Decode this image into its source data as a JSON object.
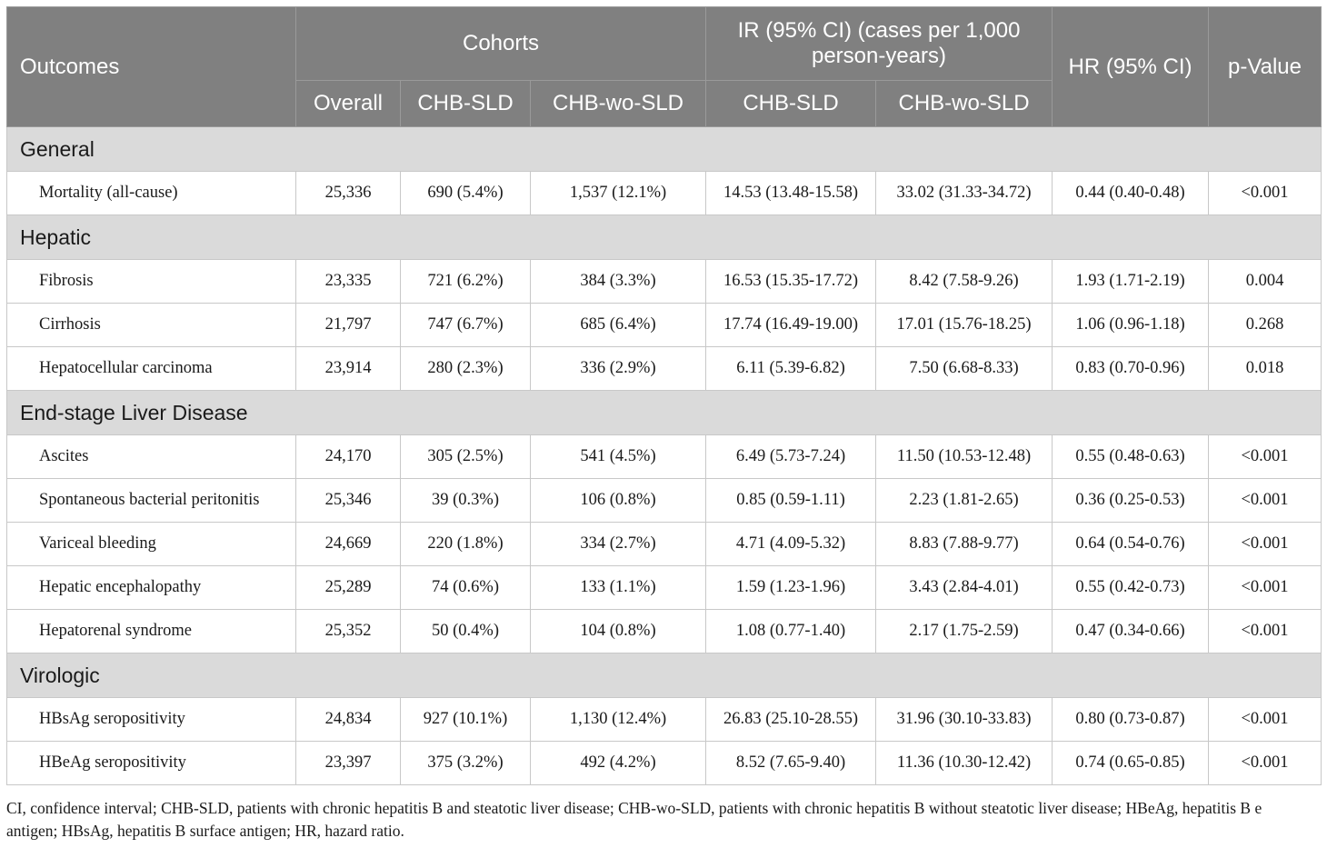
{
  "header": {
    "outcomes": "Outcomes",
    "cohorts": "Cohorts",
    "ir": "IR (95% CI) (cases per 1,000 person-years)",
    "ir_line1": "IR (95% CI) (cases per 1,000",
    "ir_line2": "person-years)",
    "hr": "HR (95% CI)",
    "pvalue": "p-Value",
    "sub": [
      "Overall",
      "CHB-SLD",
      "CHB-wo-SLD",
      "CHB-SLD",
      "CHB-wo-SLD"
    ]
  },
  "sections": [
    {
      "title": "General",
      "rows": [
        [
          "Mortality (all-cause)",
          "25,336",
          "690 (5.4%)",
          "1,537 (12.1%)",
          "14.53 (13.48-15.58)",
          "33.02 (31.33-34.72)",
          "0.44 (0.40-0.48)",
          "<0.001"
        ]
      ]
    },
    {
      "title": "Hepatic",
      "rows": [
        [
          "Fibrosis",
          "23,335",
          "721 (6.2%)",
          "384 (3.3%)",
          "16.53 (15.35-17.72)",
          "8.42 (7.58-9.26)",
          "1.93 (1.71-2.19)",
          "0.004"
        ],
        [
          "Cirrhosis",
          "21,797",
          "747 (6.7%)",
          "685 (6.4%)",
          "17.74 (16.49-19.00)",
          "17.01 (15.76-18.25)",
          "1.06 (0.96-1.18)",
          "0.268"
        ],
        [
          "Hepatocellular carcinoma",
          "23,914",
          "280 (2.3%)",
          "336 (2.9%)",
          "6.11 (5.39-6.82)",
          "7.50 (6.68-8.33)",
          "0.83 (0.70-0.96)",
          "0.018"
        ]
      ]
    },
    {
      "title": "End-stage Liver Disease",
      "rows": [
        [
          "Ascites",
          "24,170",
          "305 (2.5%)",
          "541 (4.5%)",
          "6.49 (5.73-7.24)",
          "11.50 (10.53-12.48)",
          "0.55 (0.48-0.63)",
          "<0.001"
        ],
        [
          "Spontaneous bacterial peritonitis",
          "25,346",
          "39 (0.3%)",
          "106 (0.8%)",
          "0.85 (0.59-1.11)",
          "2.23 (1.81-2.65)",
          "0.36 (0.25-0.53)",
          "<0.001"
        ],
        [
          "Variceal bleeding",
          "24,669",
          "220 (1.8%)",
          "334 (2.7%)",
          "4.71 (4.09-5.32)",
          "8.83 (7.88-9.77)",
          "0.64 (0.54-0.76)",
          "<0.001"
        ],
        [
          "Hepatic encephalopathy",
          "25,289",
          "74 (0.6%)",
          "133 (1.1%)",
          "1.59 (1.23-1.96)",
          "3.43 (2.84-4.01)",
          "0.55 (0.42-0.73)",
          "<0.001"
        ],
        [
          "Hepatorenal syndrome",
          "25,352",
          "50 (0.4%)",
          "104 (0.8%)",
          "1.08 (0.77-1.40)",
          "2.17 (1.75-2.59)",
          "0.47 (0.34-0.66)",
          "<0.001"
        ]
      ]
    },
    {
      "title": "Virologic",
      "rows": [
        [
          "HBsAg seropositivity",
          "24,834",
          "927 (10.1%)",
          "1,130 (12.4%)",
          "26.83 (25.10-28.55)",
          "31.96 (30.10-33.83)",
          "0.80 (0.73-0.87)",
          "<0.001"
        ],
        [
          "HBeAg seropositivity",
          "23,397",
          "375 (3.2%)",
          "492 (4.2%)",
          "8.52 (7.65-9.40)",
          "11.36 (10.30-12.42)",
          "0.74 (0.65-0.85)",
          "<0.001"
        ]
      ]
    }
  ],
  "footnote": {
    "line1": "CI, confidence interval; CHB-SLD, patients with chronic hepatitis B and steatotic liver disease; CHB-wo-SLD, patients with chronic hepatitis B without steatotic liver disease; HBeAg, hepatitis B e",
    "line2": "antigen; HBsAg, hepatitis B surface antigen; HR, hazard ratio."
  }
}
